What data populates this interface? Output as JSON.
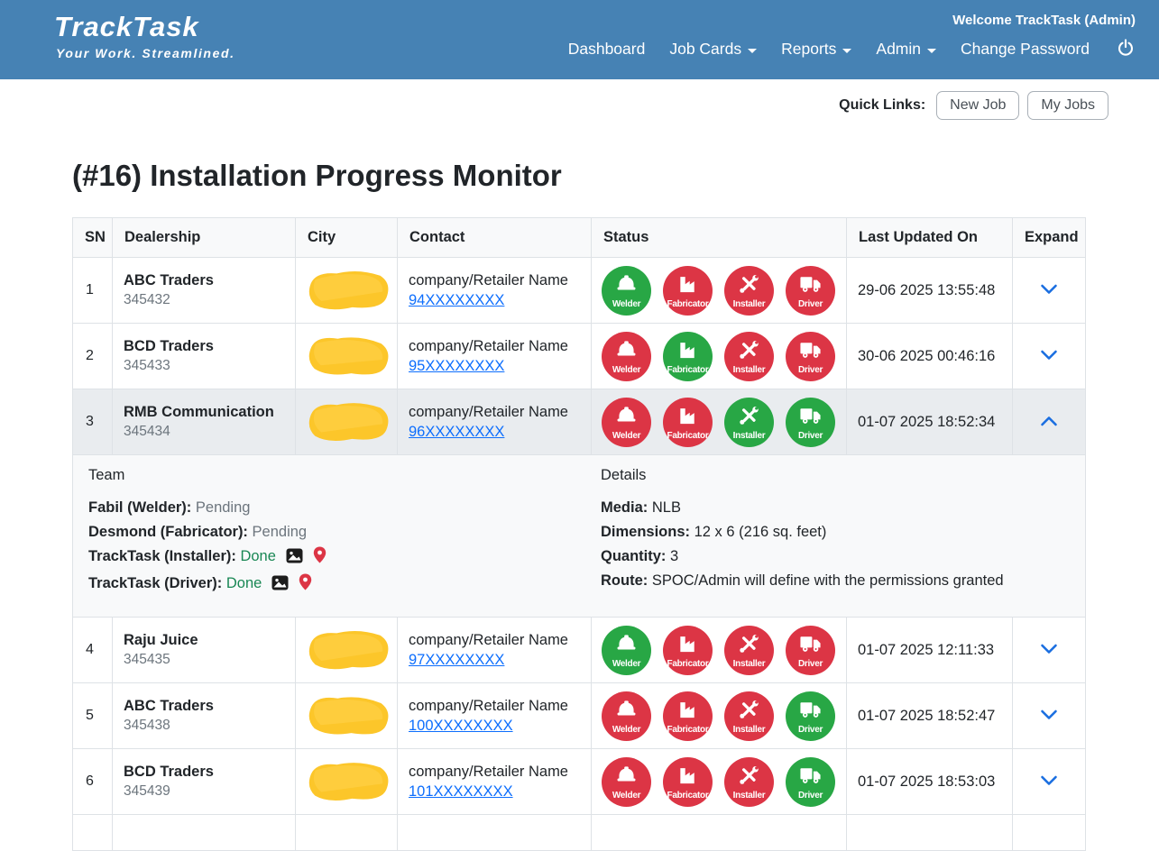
{
  "header": {
    "logo_title": "TrackTask",
    "logo_tagline": "Your Work. Streamlined.",
    "welcome_text": "Welcome TrackTask (Admin)",
    "nav": [
      {
        "label": "Dashboard",
        "dropdown": false
      },
      {
        "label": "Job Cards",
        "dropdown": true
      },
      {
        "label": "Reports",
        "dropdown": true
      },
      {
        "label": "Admin",
        "dropdown": true
      },
      {
        "label": "Change Password",
        "dropdown": false
      }
    ]
  },
  "quick_links": {
    "label": "Quick Links:",
    "buttons": [
      "New Job",
      "My Jobs"
    ]
  },
  "page_title": "(#16) Installation Progress Monitor",
  "table": {
    "headers": [
      "SN",
      "Dealership",
      "City",
      "Contact",
      "Status",
      "Last Updated On",
      "Expand"
    ],
    "status_roles": [
      "Welder",
      "Fabricator",
      "Installer",
      "Driver"
    ],
    "rows": [
      {
        "sn": "1",
        "dealership": "ABC Traders",
        "dealership_id": "345432",
        "contact_name": "company/Retailer Name",
        "contact_phone": "94XXXXXXXX",
        "statuses": [
          "done",
          "pending",
          "pending",
          "pending"
        ],
        "last_updated": "29-06 2025 13:55:48",
        "expanded": false
      },
      {
        "sn": "2",
        "dealership": "BCD Traders",
        "dealership_id": "345433",
        "contact_name": "company/Retailer Name",
        "contact_phone": "95XXXXXXXX",
        "statuses": [
          "pending",
          "done",
          "pending",
          "pending"
        ],
        "last_updated": "30-06 2025 00:46:16",
        "expanded": false
      },
      {
        "sn": "3",
        "dealership": "RMB Communication",
        "dealership_id": "345434",
        "contact_name": "company/Retailer Name",
        "contact_phone": "96XXXXXXXX",
        "statuses": [
          "pending",
          "pending",
          "done",
          "done"
        ],
        "last_updated": "01-07 2025 18:52:34",
        "expanded": true
      },
      {
        "sn": "4",
        "dealership": "Raju Juice",
        "dealership_id": "345435",
        "contact_name": "company/Retailer Name",
        "contact_phone": "97XXXXXXXX",
        "statuses": [
          "done",
          "pending",
          "pending",
          "pending"
        ],
        "last_updated": "01-07 2025 12:11:33",
        "expanded": false
      },
      {
        "sn": "5",
        "dealership": "ABC Traders",
        "dealership_id": "345438",
        "contact_name": "company/Retailer Name",
        "contact_phone": "100XXXXXXXX",
        "statuses": [
          "pending",
          "pending",
          "pending",
          "done"
        ],
        "last_updated": "01-07 2025 18:52:47",
        "expanded": false
      },
      {
        "sn": "6",
        "dealership": "BCD Traders",
        "dealership_id": "345439",
        "contact_name": "company/Retailer Name",
        "contact_phone": "101XXXXXXXX",
        "statuses": [
          "pending",
          "pending",
          "pending",
          "done"
        ],
        "last_updated": "01-07 2025 18:53:03",
        "expanded": false
      }
    ]
  },
  "expanded_panel": {
    "team_title": "Team",
    "team": [
      {
        "label": "Fabil (Welder):",
        "status": "Pending",
        "has_icons": false
      },
      {
        "label": "Desmond (Fabricator):",
        "status": "Pending",
        "has_icons": false
      },
      {
        "label": "TrackTask (Installer):",
        "status": "Done",
        "has_icons": true
      },
      {
        "label": "TrackTask (Driver):",
        "status": "Done",
        "has_icons": true
      }
    ],
    "details_title": "Details",
    "details": [
      {
        "label": "Media:",
        "value": "NLB"
      },
      {
        "label": "Dimensions:",
        "value": "12 x 6 (216 sq. feet)"
      },
      {
        "label": "Quantity:",
        "value": "3"
      },
      {
        "label": "Route:",
        "value": "SPOC/Admin will define with the permissions granted"
      }
    ]
  },
  "colors": {
    "header_bg": "#4682b4",
    "link_blue": "#0d6efd",
    "done_green": "#28a745",
    "pending_red": "#dc3545",
    "done_text": "#198754",
    "pending_text": "#6c757d",
    "active_row_bg": "#e9ecef",
    "redaction_yellow": "#fcc62a"
  }
}
